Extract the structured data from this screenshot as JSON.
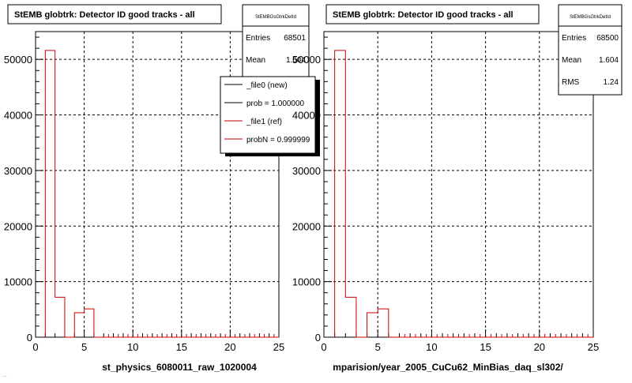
{
  "footer_text": "...",
  "chart_data": [
    {
      "type": "histogram",
      "title": "StEMB globtrk: Detector ID good tracks - all",
      "xlabel": "st_physics_6080011_raw_1020004",
      "ylabel": "",
      "xlim": [
        0,
        25
      ],
      "ylim": [
        0,
        55000
      ],
      "x_ticks": [
        "0",
        "5",
        "10",
        "15",
        "20",
        "25"
      ],
      "y_ticks": [
        "0",
        "10000",
        "20000",
        "30000",
        "40000",
        "50000"
      ],
      "grid": true,
      "stats_box": {
        "name": "StEMBGsGtrkDetId",
        "rows": [
          {
            "label": "Entries",
            "value": "68501"
          },
          {
            "label": "Mean",
            "value": "1.604"
          }
        ]
      },
      "legend": {
        "placement": "top-right",
        "entries": [
          {
            "label": "_file0 (new)",
            "color": "#000000"
          },
          {
            "label": "prob = 1.000000",
            "color": "#000000"
          },
          {
            "label": "_file1 (ref)",
            "color": "#cc0000"
          },
          {
            "label": "probN = 0.999999",
            "color": "#cc0000"
          }
        ]
      },
      "series": [
        {
          "color": "#cc0000",
          "bins": [
            {
              "x0": 1,
              "x1": 2,
              "y": 51600
            },
            {
              "x0": 2,
              "x1": 3,
              "y": 7200
            },
            {
              "x0": 3,
              "x1": 4,
              "y": 0
            },
            {
              "x0": 4,
              "x1": 5,
              "y": 4400
            },
            {
              "x0": 5,
              "x1": 6,
              "y": 5100
            }
          ]
        }
      ]
    },
    {
      "type": "histogram",
      "title": "StEMB globtrk: Detector ID good tracks - all",
      "xlabel": "mparision/year_2005_CuCu62_MinBias_daq_sl302/",
      "ylabel": "",
      "xlim": [
        0,
        25
      ],
      "ylim": [
        0,
        55000
      ],
      "x_ticks": [
        "0",
        "5",
        "10",
        "15",
        "20",
        "25"
      ],
      "y_ticks": [
        "0",
        "10000",
        "20000",
        "30000",
        "40000",
        "50000"
      ],
      "grid": true,
      "stats_box": {
        "name": "StEMBGsGtrkDetId",
        "rows": [
          {
            "label": "Entries",
            "value": "68500"
          },
          {
            "label": "Mean",
            "value": "1.604"
          },
          {
            "label": "RMS",
            "value": "1.24"
          }
        ]
      },
      "series": [
        {
          "color": "#cc0000",
          "bins": [
            {
              "x0": 1,
              "x1": 2,
              "y": 51600
            },
            {
              "x0": 2,
              "x1": 3,
              "y": 7200
            },
            {
              "x0": 3,
              "x1": 4,
              "y": 0
            },
            {
              "x0": 4,
              "x1": 5,
              "y": 4400
            },
            {
              "x0": 5,
              "x1": 6,
              "y": 5100
            }
          ]
        }
      ]
    }
  ]
}
